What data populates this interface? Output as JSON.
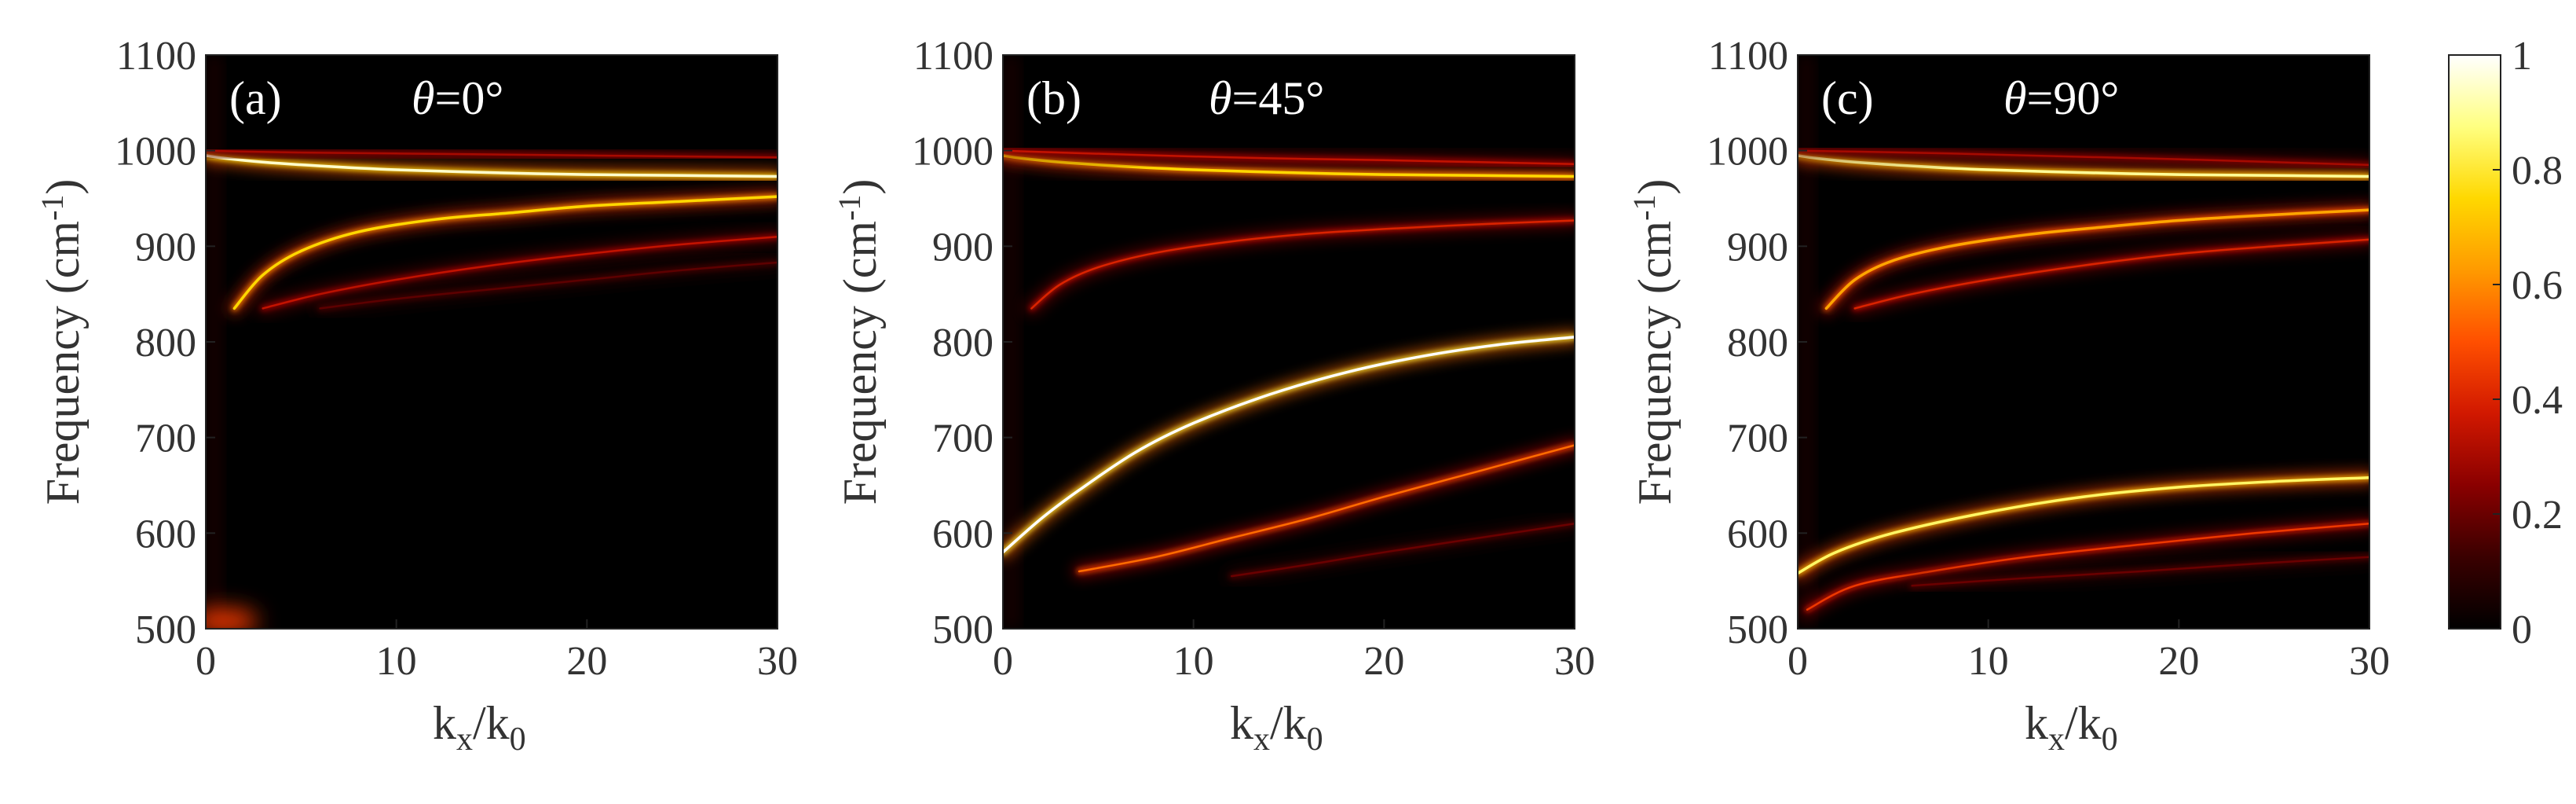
{
  "chart_data": {
    "type": "heatmap",
    "colorbar": {
      "ticks": [
        0,
        0.2,
        0.4,
        0.6,
        0.8,
        1
      ],
      "tick_labels": [
        "0",
        "0.2",
        "0.4",
        "0.6",
        "0.8",
        "1"
      ],
      "range": [
        0,
        1
      ],
      "colormap": [
        "#000000",
        "#3a0000",
        "#8a0000",
        "#d11800",
        "#ff4f00",
        "#ff9a00",
        "#ffd800",
        "#ffff80",
        "#ffffff"
      ]
    },
    "panels": [
      {
        "panel_label": "(a)",
        "theta_symbol": "θ",
        "theta_value": "=0°",
        "xlabel_main": "k",
        "xlabel_sub1": "x",
        "xlabel_mid": "/k",
        "xlabel_sub2": "0",
        "ylabel_main": "Frequency (cm",
        "ylabel_sup": "-1",
        "ylabel_end": ")",
        "xlim": [
          0,
          30
        ],
        "ylim": [
          500,
          1100
        ],
        "xticks": [
          0,
          10,
          20,
          30
        ],
        "xtick_labels": [
          "0",
          "10",
          "20",
          "30"
        ],
        "yticks": [
          500,
          600,
          700,
          800,
          900,
          1000,
          1100
        ],
        "ytick_labels": [
          "500",
          "600",
          "700",
          "800",
          "900",
          "1000",
          "1100"
        ],
        "bands": [
          {
            "x": [
              0,
              1,
              3,
              6,
              10,
              15,
              20,
              25,
              30
            ],
            "y": [
              995,
              992,
              988,
              984,
              980,
              977,
              975,
              974,
              973
            ],
            "intensity": 0.95
          },
          {
            "x": [
              0,
              2,
              5,
              10,
              15,
              20,
              25,
              30
            ],
            "y": [
              1000,
              999,
              998,
              997,
              996,
              995,
              994,
              993
            ],
            "intensity": 0.3
          },
          {
            "x": [
              1.5,
              3,
              5,
              8,
              12,
              16,
              20,
              25,
              30
            ],
            "y": [
              835,
              870,
              895,
              915,
              928,
              935,
              942,
              947,
              952
            ],
            "intensity": 0.75
          },
          {
            "x": [
              3,
              6,
              10,
              15,
              20,
              25,
              30
            ],
            "y": [
              835,
              850,
              865,
              880,
              892,
              902,
              910
            ],
            "intensity": 0.35
          },
          {
            "x": [
              6,
              10,
              15,
              20,
              25,
              30
            ],
            "y": [
              835,
              845,
              855,
              865,
              875,
              883
            ],
            "intensity": 0.18
          }
        ],
        "blobs": [
          {
            "x": 1,
            "y": 508,
            "intensity": 0.45
          }
        ]
      },
      {
        "panel_label": "(b)",
        "theta_symbol": "θ",
        "theta_value": "=45°",
        "xlabel_main": "k",
        "xlabel_sub1": "x",
        "xlabel_mid": "/k",
        "xlabel_sub2": "0",
        "ylabel_main": "Frequency (cm",
        "ylabel_sup": "-1",
        "ylabel_end": ")",
        "xlim": [
          0,
          30
        ],
        "ylim": [
          500,
          1100
        ],
        "xticks": [
          0,
          10,
          20,
          30
        ],
        "xtick_labels": [
          "0",
          "10",
          "20",
          "30"
        ],
        "yticks": [
          500,
          600,
          700,
          800,
          900,
          1000,
          1100
        ],
        "ytick_labels": [
          "500",
          "600",
          "700",
          "800",
          "900",
          "1000",
          "1100"
        ],
        "bands": [
          {
            "x": [
              0,
              1,
              3,
              6,
              10,
              15,
              20,
              25,
              30
            ],
            "y": [
              995,
              992,
              988,
              984,
              980,
              977,
              975,
              974,
              973
            ],
            "intensity": 0.75
          },
          {
            "x": [
              0,
              3,
              8,
              14,
              20,
              25,
              30
            ],
            "y": [
              1000,
              998,
              995,
              992,
              990,
              988,
              986
            ],
            "intensity": 0.35
          },
          {
            "x": [
              1.5,
              3,
              5,
              8,
              12,
              16,
              20,
              25,
              30
            ],
            "y": [
              835,
              860,
              878,
              893,
              905,
              913,
              918,
              923,
              927
            ],
            "intensity": 0.4
          },
          {
            "x": [
              0,
              2,
              4,
              7,
              10,
              14,
              18,
              22,
              26,
              30
            ],
            "y": [
              580,
              615,
              645,
              685,
              715,
              745,
              768,
              785,
              797,
              805
            ],
            "intensity": 1.0
          },
          {
            "x": [
              4,
              8,
              12,
              16,
              20,
              25,
              30
            ],
            "y": [
              560,
              575,
              595,
              615,
              638,
              665,
              692
            ],
            "intensity": 0.55
          },
          {
            "x": [
              12,
              16,
              20,
              25,
              30
            ],
            "y": [
              555,
              567,
              580,
              595,
              610
            ],
            "intensity": 0.2
          }
        ],
        "blobs": []
      },
      {
        "panel_label": "(c)",
        "theta_symbol": "θ",
        "theta_value": "=90°",
        "xlabel_main": "k",
        "xlabel_sub1": "x",
        "xlabel_mid": "/k",
        "xlabel_sub2": "0",
        "ylabel_main": "Frequency (cm",
        "ylabel_sup": "-1",
        "ylabel_end": ")",
        "xlim": [
          0,
          30
        ],
        "ylim": [
          500,
          1100
        ],
        "xticks": [
          0,
          10,
          20,
          30
        ],
        "xtick_labels": [
          "0",
          "10",
          "20",
          "30"
        ],
        "yticks": [
          500,
          600,
          700,
          800,
          900,
          1000,
          1100
        ],
        "ytick_labels": [
          "500",
          "600",
          "700",
          "800",
          "900",
          "1000",
          "1100"
        ],
        "bands": [
          {
            "x": [
              0,
              1,
              3,
              6,
              10,
              15,
              20,
              25,
              30
            ],
            "y": [
              995,
              992,
              988,
              984,
              980,
              977,
              975,
              974,
              973
            ],
            "intensity": 0.9
          },
          {
            "x": [
              0,
              3,
              8,
              14,
              20,
              25,
              30
            ],
            "y": [
              1000,
              999,
              997,
              994,
              991,
              988,
              985
            ],
            "intensity": 0.3
          },
          {
            "x": [
              1.5,
              3,
              5,
              8,
              12,
              16,
              20,
              25,
              30
            ],
            "y": [
              835,
              865,
              885,
              900,
              912,
              920,
              927,
              933,
              938
            ],
            "intensity": 0.65
          },
          {
            "x": [
              3,
              6,
              10,
              15,
              20,
              25,
              30
            ],
            "y": [
              835,
              850,
              865,
              880,
              892,
              900,
              907
            ],
            "intensity": 0.4
          },
          {
            "x": [
              0,
              2,
              5,
              10,
              15,
              20,
              25,
              30
            ],
            "y": [
              558,
              580,
              600,
              622,
              638,
              648,
              654,
              658
            ],
            "intensity": 0.85
          },
          {
            "x": [
              0.5,
              3,
              7,
              12,
              18,
              24,
              30
            ],
            "y": [
              520,
              545,
              560,
              575,
              588,
              600,
              610
            ],
            "intensity": 0.45
          },
          {
            "x": [
              6,
              12,
              18,
              24,
              30
            ],
            "y": [
              545,
              553,
              560,
              568,
              575
            ],
            "intensity": 0.2
          }
        ],
        "blobs": []
      }
    ]
  }
}
